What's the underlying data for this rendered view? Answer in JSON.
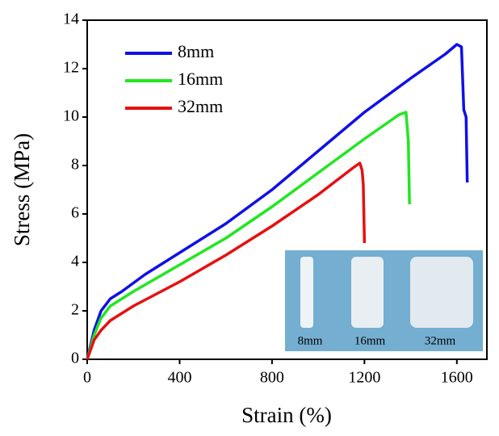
{
  "chart_data": {
    "type": "line",
    "x_label": "Strain (%)",
    "y_label": "Stress (MPa)",
    "xlim": [
      0,
      1730
    ],
    "ylim": [
      0,
      14
    ],
    "xticks": [
      0,
      400,
      800,
      1200,
      1600
    ],
    "yticks": [
      0,
      2,
      4,
      6,
      8,
      10,
      12,
      14
    ],
    "legend": "upper-left",
    "series": [
      {
        "name": "8mm",
        "color": "#1010e6",
        "x": [
          0,
          30,
          60,
          100,
          150,
          250,
          400,
          600,
          800,
          1000,
          1200,
          1400,
          1550,
          1600,
          1620,
          1630,
          1640,
          1645
        ],
        "values": [
          0,
          1.2,
          2,
          2.5,
          2.8,
          3.5,
          4.4,
          5.6,
          7,
          8.6,
          10.2,
          11.6,
          12.6,
          13,
          12.9,
          10.3,
          10,
          7.3
        ]
      },
      {
        "name": "16mm",
        "color": "#22e622",
        "x": [
          0,
          30,
          60,
          100,
          200,
          400,
          600,
          800,
          1000,
          1200,
          1350,
          1380,
          1390,
          1395
        ],
        "values": [
          0,
          1,
          1.7,
          2.2,
          2.8,
          3.9,
          5,
          6.3,
          7.7,
          9.1,
          10.1,
          10.2,
          9,
          6.4
        ]
      },
      {
        "name": "32mm",
        "color": "#e61010",
        "x": [
          0,
          30,
          60,
          100,
          200,
          400,
          600,
          800,
          1000,
          1150,
          1180,
          1190,
          1195,
          1200
        ],
        "values": [
          0,
          0.8,
          1.2,
          1.6,
          2.2,
          3.2,
          4.3,
          5.5,
          6.8,
          7.9,
          8.1,
          7.8,
          7.2,
          4.8
        ]
      }
    ],
    "inset": {
      "labels": [
        "8mm",
        "16mm",
        "32mm"
      ]
    }
  }
}
